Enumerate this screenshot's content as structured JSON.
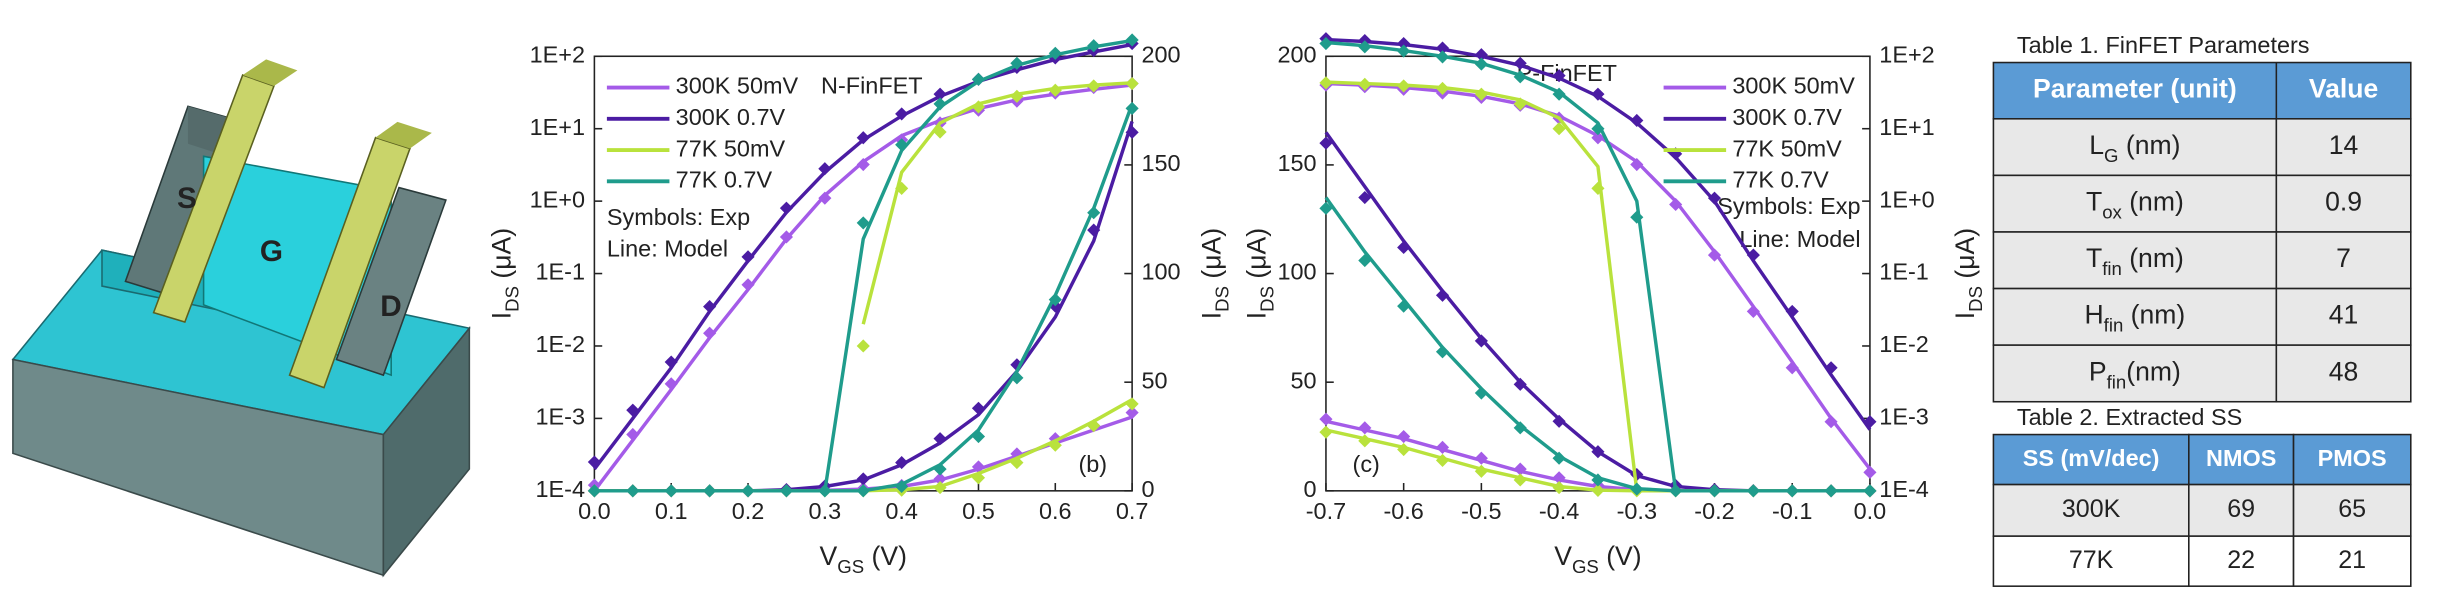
{
  "device": {
    "labels": [
      "S",
      "G",
      "D"
    ]
  },
  "chart_data": [
    {
      "type": "line",
      "annotations": [
        "N-FinFET",
        "Symbols: Exp",
        "Line: Model",
        "(b)"
      ],
      "xlabel": {
        "main": "V",
        "sub": "GS",
        "unit": " (V)"
      },
      "ylabel": {
        "main": "I",
        "sub": "DS",
        "unit": " (μA)"
      },
      "y2label": {
        "main": "I",
        "sub": "DS",
        "unit": " (μA)"
      },
      "legend": "top-left",
      "x": [
        0,
        0.05,
        0.1,
        0.15,
        0.2,
        0.25,
        0.3,
        0.35,
        0.4,
        0.45,
        0.5,
        0.55,
        0.6,
        0.65,
        0.7
      ],
      "xlim": [
        0,
        0.7
      ],
      "xticks": [
        {
          "value": 0,
          "label": "0.0"
        },
        0.1,
        0.2,
        0.3,
        0.4,
        0.5,
        0.6,
        0.7
      ],
      "yscale": "log",
      "ylim": [
        0.0001,
        100
      ],
      "yticks": [
        {
          "value": 0.0001,
          "label": "1E-4"
        },
        {
          "value": 0.001,
          "label": "1E-3"
        },
        {
          "value": 0.01,
          "label": "1E-2"
        },
        {
          "value": 0.1,
          "label": "1E-1"
        },
        {
          "value": 1,
          "label": "1E+0"
        },
        {
          "value": 10,
          "label": "1E+1"
        },
        {
          "value": 100,
          "label": "1E+2"
        }
      ],
      "y2scale": "linear",
      "y2lim": [
        0,
        200
      ],
      "y2ticks": [
        0,
        50,
        100,
        150,
        200
      ],
      "series": [
        {
          "name": "300K 50mV",
          "color": "#a45be8",
          "y_model": [
            0.0001,
            0.0005,
            0.0025,
            0.013,
            0.06,
            0.3,
            1.2,
            3.5,
            8,
            13,
            19,
            25,
            30,
            35,
            40
          ],
          "y_exp": [
            0.00012,
            0.0006,
            0.003,
            0.015,
            0.07,
            0.32,
            1.1,
            3.2,
            7,
            12,
            18,
            24,
            31,
            37,
            42
          ],
          "y2_model": [
            0,
            0,
            0,
            0,
            0,
            0,
            0.2,
            0.8,
            2,
            5,
            10,
            16,
            22,
            28,
            34
          ],
          "y2_exp": [
            0,
            0,
            0,
            0,
            0,
            0,
            0.3,
            1,
            2.5,
            5.5,
            11,
            17,
            24,
            30,
            36
          ]
        },
        {
          "name": "300K 0.7V",
          "color": "#4b1ca3",
          "y_model": [
            0.0002,
            0.001,
            0.005,
            0.03,
            0.15,
            0.7,
            2.5,
            7,
            15,
            28,
            45,
            65,
            90,
            115,
            145
          ],
          "y_exp": [
            0.00025,
            0.0013,
            0.006,
            0.035,
            0.17,
            0.8,
            2.8,
            7.5,
            16,
            30,
            48,
            70,
            95,
            120,
            150
          ],
          "y2_model": [
            0,
            0,
            0,
            0,
            0,
            0.5,
            2,
            5,
            12,
            22,
            35,
            55,
            80,
            115,
            170
          ],
          "y2_exp": [
            0,
            0,
            0,
            0,
            0,
            0.6,
            2.2,
            5.5,
            13,
            24,
            38,
            58,
            85,
            120,
            165
          ]
        },
        {
          "name": "77K  50mV",
          "color": "#b9e23c",
          "y_model": [
            null,
            null,
            null,
            null,
            null,
            null,
            null,
            0.02,
            2.5,
            12,
            22,
            30,
            36,
            40,
            43
          ],
          "y_exp": [
            null,
            null,
            null,
            null,
            null,
            null,
            null,
            0.01,
            1.5,
            9,
            20,
            28,
            34,
            39,
            42
          ],
          "y2_model": [
            0,
            0,
            0,
            0,
            0,
            0,
            0,
            0,
            0.5,
            2,
            8,
            15,
            23,
            32,
            42
          ],
          "y2_exp": [
            0,
            0,
            0,
            0,
            0,
            0,
            0,
            0,
            0.3,
            1.5,
            6,
            13,
            21,
            30,
            40
          ]
        },
        {
          "name": "77K  0.7V",
          "color": "#1f9c8c",
          "y_model": [
            null,
            null,
            null,
            null,
            null,
            null,
            0.0001,
            0.3,
            5,
            20,
            45,
            75,
            105,
            135,
            165
          ],
          "y_exp": [
            null,
            null,
            null,
            null,
            null,
            null,
            0.0001,
            0.5,
            6,
            22,
            48,
            80,
            110,
            140,
            168
          ],
          "y2_model": [
            0,
            0,
            0,
            0,
            0,
            0,
            0,
            0,
            3,
            12,
            28,
            55,
            90,
            130,
            178
          ],
          "y2_exp": [
            0,
            0,
            0,
            0,
            0,
            0,
            0,
            0,
            2,
            10,
            25,
            52,
            88,
            128,
            176
          ]
        }
      ]
    },
    {
      "type": "line",
      "annotations": [
        "P-FinFET",
        "Symbols: Exp",
        "Line: Model",
        "(c)"
      ],
      "xlabel": {
        "main": "V",
        "sub": "GS",
        "unit": " (V)"
      },
      "ylabel": {
        "main": "I",
        "sub": "DS",
        "unit": " (μA)"
      },
      "y2label": {
        "main": "I",
        "sub": "DS",
        "unit": " (μA)"
      },
      "legend": "top-right",
      "x": [
        -0.7,
        -0.65,
        -0.6,
        -0.55,
        -0.5,
        -0.45,
        -0.4,
        -0.35,
        -0.3,
        -0.25,
        -0.2,
        -0.15,
        -0.1,
        -0.05,
        0
      ],
      "xlim": [
        -0.7,
        0
      ],
      "xticks": [
        -0.7,
        -0.6,
        -0.5,
        -0.4,
        -0.3,
        -0.2,
        -0.1,
        {
          "value": 0,
          "label": "0.0"
        }
      ],
      "yscale": "linear",
      "ylim": [
        0,
        200
      ],
      "yticks": [
        0,
        50,
        100,
        150,
        200
      ],
      "y2scale": "log",
      "y2lim": [
        0.0001,
        100
      ],
      "y2ticks": [
        {
          "value": 0.0001,
          "label": "1E-4"
        },
        {
          "value": 0.001,
          "label": "1E-3"
        },
        {
          "value": 0.01,
          "label": "1E-2"
        },
        {
          "value": 0.1,
          "label": "1E-1"
        },
        {
          "value": 1,
          "label": "1E+0"
        },
        {
          "value": 10,
          "label": "1E+1"
        },
        {
          "value": 100,
          "label": "1E+2"
        }
      ],
      "series": [
        {
          "name": "300K 50mV",
          "color": "#a45be8",
          "y_model": [
            32,
            28,
            24,
            19,
            14,
            9,
            5,
            2,
            0.5,
            0,
            0,
            0,
            0,
            0,
            0
          ],
          "y_exp": [
            33,
            29,
            25,
            20,
            15,
            10,
            6,
            2.5,
            0.7,
            0.1,
            0,
            0,
            0,
            0,
            0
          ],
          "y2_model": [
            42,
            40,
            37,
            33,
            28,
            22,
            15,
            8,
            3.5,
            1,
            0.2,
            0.035,
            0.006,
            0.001,
            0.0002
          ],
          "y2_exp": [
            40,
            38,
            35,
            31,
            27,
            21,
            14,
            7.5,
            3.2,
            0.9,
            0.18,
            0.03,
            0.005,
            0.0009,
            0.00018
          ]
        },
        {
          "name": "300K 0.7V",
          "color": "#4b1ca3",
          "y_model": [
            165,
            140,
            115,
            92,
            70,
            50,
            33,
            18,
            7,
            2,
            0.5,
            0,
            0,
            0,
            0
          ],
          "y_exp": [
            160,
            135,
            112,
            90,
            69,
            49,
            32,
            18,
            7.5,
            2.5,
            0.6,
            0.1,
            0,
            0,
            0
          ],
          "y2_model": [
            170,
            160,
            145,
            125,
            100,
            75,
            50,
            28,
            12,
            4,
            1,
            0.15,
            0.025,
            0.004,
            0.0007
          ],
          "y2_exp": [
            175,
            165,
            150,
            130,
            105,
            80,
            54,
            30,
            13,
            4.5,
            1.1,
            0.18,
            0.03,
            0.005,
            0.0009
          ]
        },
        {
          "name": "77K  50mV",
          "color": "#b9e23c",
          "y_model": [
            28,
            24,
            20,
            15,
            10,
            6,
            2,
            0.3,
            0,
            0,
            0,
            0,
            0,
            0,
            0
          ],
          "y_exp": [
            27,
            23,
            19,
            14,
            9,
            5,
            1.5,
            0.2,
            0,
            0,
            0,
            0,
            0,
            0,
            0
          ],
          "y2_model": [
            44,
            42,
            40,
            37,
            32,
            25,
            14,
            3,
            0.0001,
            null,
            null,
            null,
            null,
            null,
            null
          ],
          "y2_exp": [
            43,
            41,
            39,
            36,
            30,
            22,
            10,
            1.5,
            null,
            null,
            null,
            null,
            null,
            null,
            null
          ]
        },
        {
          "name": "77K  0.7V",
          "color": "#1f9c8c",
          "y_model": [
            135,
            110,
            88,
            66,
            47,
            30,
            16,
            6,
            1,
            0,
            0,
            0,
            0,
            0,
            0
          ],
          "y_exp": [
            130,
            106,
            85,
            64,
            45,
            29,
            15,
            5,
            0.8,
            0,
            0,
            0,
            0,
            0,
            0
          ],
          "y2_model": [
            155,
            140,
            120,
            100,
            80,
            55,
            32,
            12,
            1,
            0.0001,
            null,
            null,
            null,
            null,
            null
          ],
          "y2_exp": [
            150,
            135,
            118,
            98,
            78,
            52,
            30,
            10,
            0.6,
            null,
            null,
            null,
            null,
            null,
            null
          ]
        }
      ]
    }
  ],
  "table1": {
    "title": "Table 1. FinFET Parameters",
    "header": [
      "Parameter (unit)",
      "Value"
    ],
    "rows": [
      [
        {
          "sym": "L",
          "sub": "G",
          "unit": " (nm)"
        },
        14
      ],
      [
        {
          "sym": "T",
          "sub": "ox",
          "unit": " (nm)"
        },
        0.9
      ],
      [
        {
          "sym": "T",
          "sub": "fin",
          "unit": " (nm)"
        },
        7
      ],
      [
        {
          "sym": "H",
          "sub": "fin",
          "unit": " (nm)"
        },
        41
      ],
      [
        {
          "sym": "P",
          "sub": "fin",
          "unit": "(nm)"
        },
        48
      ]
    ]
  },
  "table2": {
    "title": "Table 2. Extracted SS",
    "header": [
      "SS (mV/dec)",
      "NMOS",
      "PMOS"
    ],
    "rows": [
      [
        "300K",
        69,
        65
      ],
      [
        "77K",
        22,
        21
      ]
    ]
  }
}
